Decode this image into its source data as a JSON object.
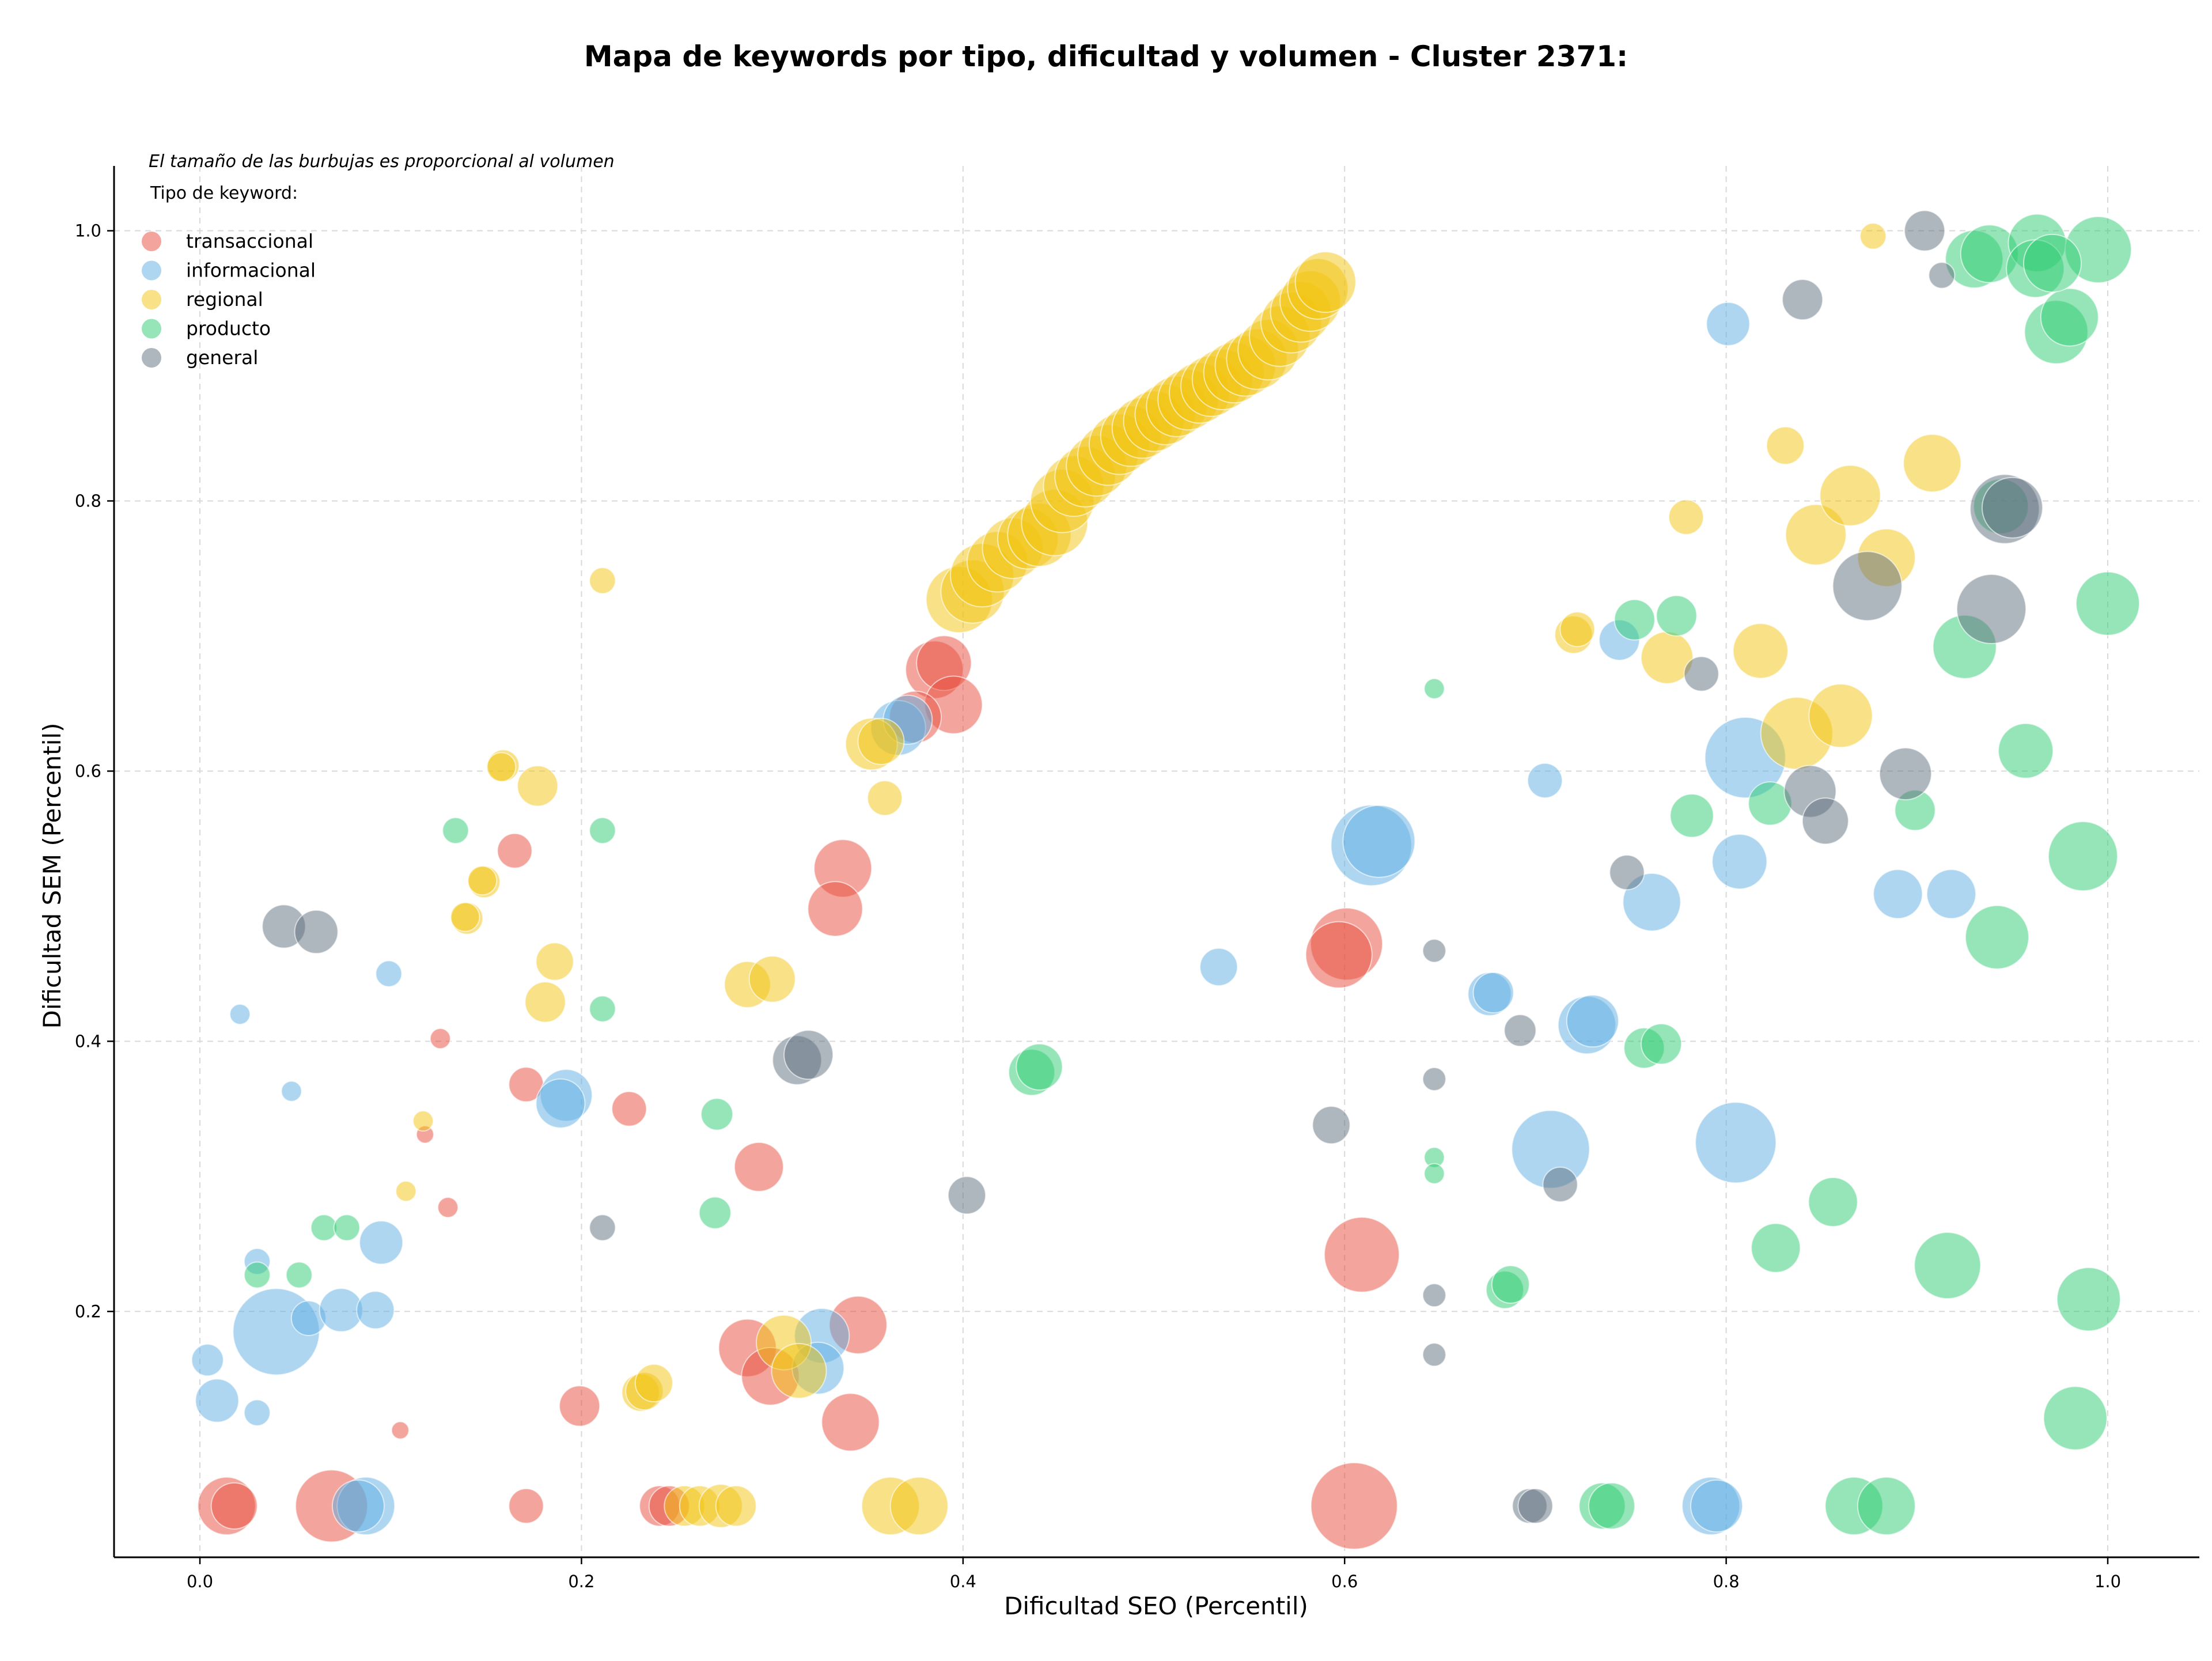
{
  "chart_data": {
    "type": "scatter",
    "title": "Mapa de keywords por tipo, dificultad y volumen - Cluster 2371:",
    "xlabel": "Dificultad SEO (Percentil)",
    "ylabel": "Dificultad SEM (Percentil)",
    "xlim": [
      -0.045,
      1.048
    ],
    "ylim": [
      0.018,
      1.048
    ],
    "xticks": [
      0.0,
      0.2,
      0.4,
      0.6,
      0.8,
      1.0
    ],
    "xtick_labels": [
      "0.0",
      "0.2",
      "0.4",
      "0.6",
      "0.8",
      "1.0"
    ],
    "yticks": [
      0.2,
      0.4,
      0.6,
      0.8,
      1.0
    ],
    "ytick_labels": [
      "0.2",
      "0.4",
      "0.6",
      "0.8",
      "1.0"
    ],
    "grid": true,
    "legend_placement": "top-left",
    "size_note": "El tamaño de las burbujas es proporcional al volumen",
    "legend_title": "Tipo de keyword:",
    "series": [
      {
        "name": "transaccional",
        "color": "#E74C3C",
        "points": [
          [
            0.014,
            0.056,
            2
          ],
          [
            0.018,
            0.056,
            1.6
          ],
          [
            0.069,
            0.056,
            2.5
          ],
          [
            0.171,
            0.056,
            1.2
          ],
          [
            0.241,
            0.056,
            1.4
          ],
          [
            0.246,
            0.056,
            1.4
          ],
          [
            0.605,
            0.056,
            3
          ],
          [
            0.13,
            0.277,
            0.7
          ],
          [
            0.105,
            0.112,
            0.6
          ],
          [
            0.126,
            0.402,
            0.7
          ],
          [
            0.118,
            0.331,
            0.6
          ],
          [
            0.171,
            0.368,
            1.2
          ],
          [
            0.165,
            0.541,
            1.2
          ],
          [
            0.225,
            0.35,
            1.2
          ],
          [
            0.199,
            0.13,
            1.4
          ],
          [
            0.293,
            0.307,
            1.7
          ],
          [
            0.287,
            0.173,
            2
          ],
          [
            0.299,
            0.152,
            2
          ],
          [
            0.341,
            0.118,
            2
          ],
          [
            0.345,
            0.19,
            2
          ],
          [
            0.337,
            0.528,
            2
          ],
          [
            0.333,
            0.498,
            1.9
          ],
          [
            0.385,
            0.675,
            2
          ],
          [
            0.39,
            0.68,
            1.9
          ],
          [
            0.395,
            0.649,
            2
          ],
          [
            0.375,
            0.64,
            1.8
          ],
          [
            0.601,
            0.472,
            2.5
          ],
          [
            0.597,
            0.464,
            2.3
          ],
          [
            0.609,
            0.242,
            2.6
          ]
        ]
      },
      {
        "name": "informacional",
        "color": "#5DADE2",
        "points": [
          [
            0.004,
            0.164,
            1.1
          ],
          [
            0.009,
            0.134,
            1.5
          ],
          [
            0.03,
            0.125,
            0.9
          ],
          [
            0.04,
            0.185,
            3
          ],
          [
            0.057,
            0.195,
            1.2
          ],
          [
            0.074,
            0.201,
            1.5
          ],
          [
            0.092,
            0.201,
            1.3
          ],
          [
            0.095,
            0.251,
            1.5
          ],
          [
            0.021,
            0.42,
            0.7
          ],
          [
            0.048,
            0.363,
            0.7
          ],
          [
            0.03,
            0.237,
            0.9
          ],
          [
            0.099,
            0.45,
            0.9
          ],
          [
            0.087,
            0.056,
            2
          ],
          [
            0.083,
            0.056,
            1.8
          ],
          [
            0.192,
            0.36,
            1.8
          ],
          [
            0.189,
            0.354,
            1.7
          ],
          [
            0.326,
            0.182,
            1.9
          ],
          [
            0.324,
            0.158,
            1.8
          ],
          [
            0.366,
            0.632,
            1.9
          ],
          [
            0.371,
            0.638,
            1.7
          ],
          [
            0.534,
            0.455,
            1.3
          ],
          [
            0.614,
            0.545,
            2.8
          ],
          [
            0.618,
            0.548,
            2.5
          ],
          [
            0.676,
            0.435,
            1.5
          ],
          [
            0.678,
            0.436,
            1.4
          ],
          [
            0.727,
            0.412,
            2
          ],
          [
            0.73,
            0.415,
            1.8
          ],
          [
            0.705,
            0.593,
            1.2
          ],
          [
            0.744,
            0.697,
            1.4
          ],
          [
            0.761,
            0.503,
            2
          ],
          [
            0.708,
            0.32,
            2.7
          ],
          [
            0.801,
            0.931,
            1.5
          ],
          [
            0.81,
            0.61,
            2.8
          ],
          [
            0.807,
            0.533,
            1.9
          ],
          [
            0.805,
            0.325,
            2.8
          ],
          [
            0.89,
            0.509,
            1.7
          ],
          [
            0.918,
            0.509,
            1.7
          ],
          [
            0.792,
            0.056,
            2
          ],
          [
            0.795,
            0.056,
            1.8
          ]
        ]
      },
      {
        "name": "regional",
        "color": "#F1C40F",
        "points": [
          [
            0.211,
            0.741,
            0.9
          ],
          [
            0.159,
            0.604,
            1.1
          ],
          [
            0.158,
            0.603,
            1.0
          ],
          [
            0.177,
            0.589,
            1.4
          ],
          [
            0.149,
            0.518,
            1.1
          ],
          [
            0.148,
            0.519,
            1.0
          ],
          [
            0.14,
            0.491,
            1.1
          ],
          [
            0.139,
            0.492,
            1.0
          ],
          [
            0.186,
            0.459,
            1.3
          ],
          [
            0.181,
            0.429,
            1.4
          ],
          [
            0.117,
            0.341,
            0.7
          ],
          [
            0.108,
            0.289,
            0.7
          ],
          [
            0.231,
            0.14,
            1.3
          ],
          [
            0.233,
            0.141,
            1.3
          ],
          [
            0.238,
            0.147,
            1.3
          ],
          [
            0.254,
            0.056,
            1.4
          ],
          [
            0.262,
            0.056,
            1.4
          ],
          [
            0.273,
            0.056,
            1.5
          ],
          [
            0.281,
            0.056,
            1.4
          ],
          [
            0.362,
            0.056,
            2
          ],
          [
            0.377,
            0.056,
            2
          ],
          [
            0.287,
            0.442,
            1.6
          ],
          [
            0.3,
            0.446,
            1.6
          ],
          [
            0.306,
            0.177,
            1.9
          ],
          [
            0.314,
            0.156,
            1.9
          ],
          [
            0.359,
            0.58,
            1.2
          ],
          [
            0.352,
            0.62,
            1.8
          ],
          [
            0.357,
            0.622,
            1.6
          ],
          [
            0.398,
            0.727,
            2.3
          ],
          [
            0.405,
            0.733,
            2.2
          ],
          [
            0.41,
            0.745,
            2.2
          ],
          [
            0.418,
            0.755,
            2.1
          ],
          [
            0.426,
            0.765,
            2.1
          ],
          [
            0.434,
            0.772,
            2.1
          ],
          [
            0.44,
            0.775,
            2.2
          ],
          [
            0.448,
            0.784,
            2.3
          ],
          [
            0.452,
            0.8,
            2.2
          ],
          [
            0.458,
            0.811,
            2.1
          ],
          [
            0.464,
            0.818,
            2.1
          ],
          [
            0.47,
            0.826,
            2.1
          ],
          [
            0.476,
            0.834,
            2.1
          ],
          [
            0.482,
            0.842,
            2.1
          ],
          [
            0.488,
            0.848,
            2.1
          ],
          [
            0.494,
            0.854,
            2.1
          ],
          [
            0.5,
            0.859,
            2.1
          ],
          [
            0.506,
            0.864,
            2.1
          ],
          [
            0.512,
            0.87,
            2.1
          ],
          [
            0.518,
            0.875,
            2.1
          ],
          [
            0.524,
            0.88,
            2.1
          ],
          [
            0.53,
            0.885,
            2.1
          ],
          [
            0.536,
            0.89,
            2.1
          ],
          [
            0.542,
            0.895,
            2.1
          ],
          [
            0.548,
            0.9,
            2.1
          ],
          [
            0.554,
            0.905,
            2.1
          ],
          [
            0.56,
            0.912,
            2.1
          ],
          [
            0.566,
            0.922,
            2.1
          ],
          [
            0.572,
            0.932,
            2.1
          ],
          [
            0.577,
            0.94,
            2.1
          ],
          [
            0.582,
            0.948,
            2.1
          ],
          [
            0.586,
            0.957,
            2.1
          ],
          [
            0.59,
            0.962,
            2.1
          ],
          [
            0.72,
            0.701,
            1.3
          ],
          [
            0.722,
            0.705,
            1.2
          ],
          [
            0.769,
            0.684,
            1.8
          ],
          [
            0.779,
            0.788,
            1.2
          ],
          [
            0.818,
            0.689,
            1.9
          ],
          [
            0.831,
            0.841,
            1.3
          ],
          [
            0.837,
            0.628,
            2.5
          ],
          [
            0.86,
            0.641,
            2.2
          ],
          [
            0.847,
            0.775,
            2.1
          ],
          [
            0.865,
            0.804,
            2.1
          ],
          [
            0.884,
            0.758,
            2
          ],
          [
            0.908,
            0.828,
            2
          ],
          [
            0.877,
            0.996,
            0.9
          ]
        ]
      },
      {
        "name": "producto",
        "color": "#2ECC71",
        "points": [
          [
            0.134,
            0.556,
            0.9
          ],
          [
            0.211,
            0.556,
            0.9
          ],
          [
            0.211,
            0.424,
            0.9
          ],
          [
            0.065,
            0.262,
            0.9
          ],
          [
            0.077,
            0.262,
            0.9
          ],
          [
            0.03,
            0.227,
            0.9
          ],
          [
            0.052,
            0.227,
            0.9
          ],
          [
            0.271,
            0.346,
            1.1
          ],
          [
            0.27,
            0.273,
            1.1
          ],
          [
            0.436,
            0.377,
            1.6
          ],
          [
            0.44,
            0.381,
            1.6
          ],
          [
            0.647,
            0.661,
            0.7
          ],
          [
            0.647,
            0.314,
            0.7
          ],
          [
            0.647,
            0.302,
            0.7
          ],
          [
            0.684,
            0.216,
            1.3
          ],
          [
            0.687,
            0.22,
            1.3
          ],
          [
            0.735,
            0.056,
            1.6
          ],
          [
            0.74,
            0.056,
            1.6
          ],
          [
            0.752,
            0.712,
            1.4
          ],
          [
            0.774,
            0.715,
            1.4
          ],
          [
            0.757,
            0.395,
            1.4
          ],
          [
            0.766,
            0.398,
            1.4
          ],
          [
            0.782,
            0.567,
            1.5
          ],
          [
            0.823,
            0.576,
            1.5
          ],
          [
            0.826,
            0.247,
            1.7
          ],
          [
            0.856,
            0.281,
            1.7
          ],
          [
            0.867,
            0.056,
            2
          ],
          [
            0.884,
            0.056,
            2
          ],
          [
            0.925,
            0.692,
            2.2
          ],
          [
            0.916,
            0.234,
            2.3
          ],
          [
            0.899,
            0.571,
            1.4
          ],
          [
            0.944,
            0.796,
            1.9
          ],
          [
            0.942,
            0.477,
            2.2
          ],
          [
            0.957,
            0.615,
            1.9
          ],
          [
            0.987,
            0.537,
            2.4
          ],
          [
            0.99,
            0.209,
            2.2
          ],
          [
            0.983,
            0.121,
            2.2
          ],
          [
            1.0,
            0.724,
            2.2
          ],
          [
            0.93,
            0.979,
            2
          ],
          [
            0.938,
            0.983,
            2
          ],
          [
            0.963,
            0.991,
            2
          ],
          [
            0.962,
            0.972,
            2
          ],
          [
            0.973,
            0.925,
            2.2
          ],
          [
            0.98,
            0.936,
            2
          ],
          [
            0.995,
            0.986,
            2.3
          ],
          [
            0.971,
            0.976,
            2
          ]
        ]
      },
      {
        "name": "general",
        "color": "#5D6D7E",
        "points": [
          [
            0.044,
            0.485,
            1.5
          ],
          [
            0.061,
            0.481,
            1.5
          ],
          [
            0.211,
            0.262,
            0.9
          ],
          [
            0.313,
            0.386,
            1.7
          ],
          [
            0.319,
            0.39,
            1.7
          ],
          [
            0.402,
            0.286,
            1.3
          ],
          [
            0.593,
            0.338,
            1.3
          ],
          [
            0.647,
            0.467,
            0.8
          ],
          [
            0.647,
            0.372,
            0.8
          ],
          [
            0.647,
            0.212,
            0.8
          ],
          [
            0.647,
            0.168,
            0.8
          ],
          [
            0.692,
            0.408,
            1.1
          ],
          [
            0.713,
            0.294,
            1.2
          ],
          [
            0.697,
            0.056,
            1.2
          ],
          [
            0.7,
            0.056,
            1.2
          ],
          [
            0.748,
            0.525,
            1.2
          ],
          [
            0.787,
            0.672,
            1.2
          ],
          [
            0.844,
            0.585,
            1.8
          ],
          [
            0.852,
            0.563,
            1.6
          ],
          [
            0.874,
            0.737,
            2.4
          ],
          [
            0.894,
            0.598,
            1.8
          ],
          [
            0.939,
            0.72,
            2.4
          ],
          [
            0.946,
            0.794,
            2.4
          ],
          [
            0.95,
            0.795,
            2.1
          ],
          [
            0.84,
            0.949,
            1.4
          ],
          [
            0.904,
            1.0,
            1.4
          ],
          [
            0.913,
            0.967,
            0.9
          ]
        ]
      }
    ]
  }
}
